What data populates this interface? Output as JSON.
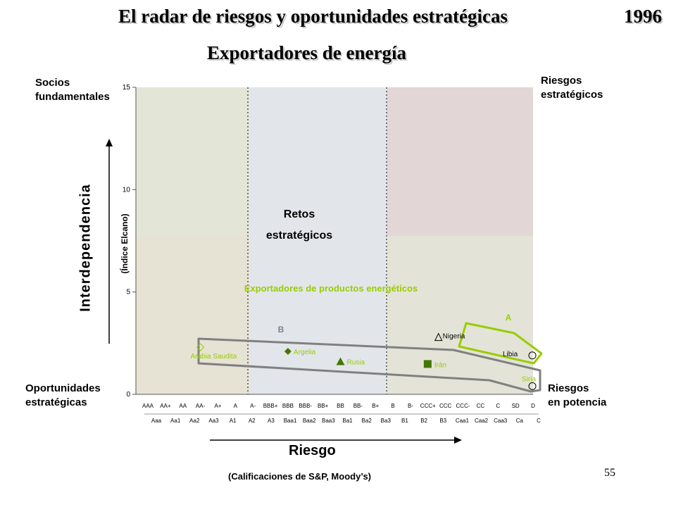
{
  "slide": {
    "title": "El radar de riesgos y oportunidades estratégicas",
    "year": "1996",
    "subtitle": "Exportadores de energía",
    "page_number": "55"
  },
  "quadrants": {
    "top_left": [
      "Socios",
      "fundamentales"
    ],
    "top_right": [
      "Riesgos",
      "estratégicos"
    ],
    "bottom_left": [
      "Oportunidades",
      "estratégicas"
    ],
    "bottom_right": [
      "Riesgos",
      "en potencia"
    ],
    "center": [
      "Retos",
      "estratégicos"
    ]
  },
  "axes": {
    "y_title": "Interdependencia",
    "y_subtitle": "(Índice Elcano)",
    "x_title": "Riesgo",
    "x_subtitle": "(Calificaciones de S&P, Moody’s)"
  },
  "colors": {
    "green_zone": "#e3e6d6",
    "beige_zone": "#e6e3d5",
    "blue_zone": "#e2e6ea",
    "red_zone": "#e3d6d6",
    "yellowgreen_zone": "#e3e4d7",
    "accent_green": "#99cc00",
    "group_outline": "#808080"
  },
  "chart_data": {
    "type": "scatter",
    "ylim": [
      0,
      15
    ],
    "yticks": [
      "0",
      "5",
      "10",
      "15"
    ],
    "x_categories_sp": [
      "AAA",
      "AA+",
      "AA",
      "AA-",
      "A+",
      "A",
      "A-",
      "BBB+",
      "BBB",
      "BBB-",
      "BB+",
      "BB",
      "BB-",
      "B+",
      "B",
      "B-",
      "CCC+",
      "CCC",
      "CCC-",
      "CC",
      "C",
      "SD",
      "D"
    ],
    "x_categories_moodys": [
      "Aaa",
      "Aa1",
      "Aa2",
      "Aa3",
      "A1",
      "A2",
      "A3",
      "Baa1",
      "Baa2",
      "Baa3",
      "Ba1",
      "Ba2",
      "Ba3",
      "B1",
      "B2",
      "B3",
      "Caa1",
      "Caa2",
      "Caa3",
      "Ca",
      "C"
    ],
    "annotation": "Exportadores de productos energéticos",
    "groups": [
      {
        "name": "B",
        "members": [
          "Arabia Saudita",
          "Argelia",
          "Rusia",
          "Irán",
          "Libia",
          "Siria"
        ]
      },
      {
        "name": "A",
        "members": [
          "Nigeria",
          "Libia"
        ]
      }
    ],
    "series": [
      {
        "name": "Arabia Saudita",
        "rating_sp": "AA-",
        "y": 2.3,
        "marker": "diamond-open"
      },
      {
        "name": "Argelia",
        "rating_sp": "BBB",
        "y": 2.1,
        "marker": "diamond-filled"
      },
      {
        "name": "Rusia",
        "rating_sp": "BB",
        "y": 1.6,
        "marker": "triangle-filled"
      },
      {
        "name": "Irán",
        "rating_sp": "CCC+",
        "y": 1.5,
        "marker": "square-filled"
      },
      {
        "name": "Nigeria",
        "rating_sp": "CCC",
        "y": 2.8,
        "marker": "triangle-open"
      },
      {
        "name": "Libia",
        "rating_sp": "D",
        "y": 1.9,
        "marker": "circle-open"
      },
      {
        "name": "Siria",
        "rating_sp": "D",
        "y": 0.4,
        "marker": "circle-open"
      }
    ]
  }
}
